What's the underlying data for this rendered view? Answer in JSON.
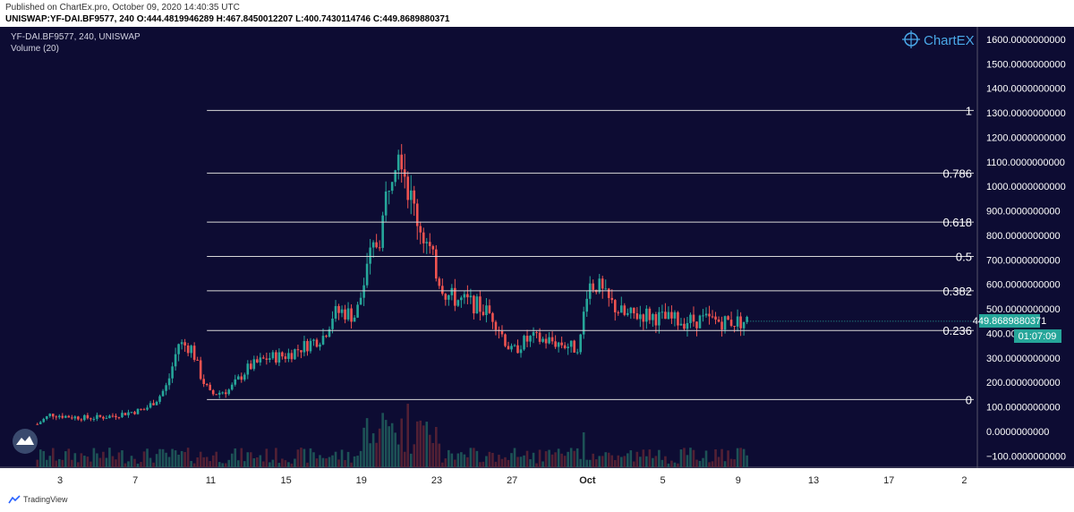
{
  "header": {
    "published": "Published on ChartEx.pro, October 09, 2020 14:40:35 UTC",
    "ohlc": "UNISWAP:YF-DAI.BF9577, 240  O:444.4819946289  H:467.8450012207  L:400.7430114746  C:449.8689880371"
  },
  "legend": {
    "symbol": "YF-DAI.BF9577, 240, UNISWAP",
    "volume": "Volume (20)"
  },
  "logo": {
    "name": "ChartEX"
  },
  "footer": {
    "brand": "TradingView"
  },
  "price_tag": {
    "price": "449.8689880371",
    "countdown": "01:07:09"
  },
  "colors": {
    "background": "#0d0c33",
    "up": "#26a69a",
    "down": "#ef5350",
    "fib": "#d8d8d8",
    "tag": "#26a69a"
  },
  "chart_data": {
    "type": "candlestick",
    "ylim": [
      -150,
      1700
    ],
    "y_ticks": [
      {
        "value": 1600,
        "label": "1600.0000000000"
      },
      {
        "value": 1500,
        "label": "1500.0000000000"
      },
      {
        "value": 1400,
        "label": "1400.0000000000"
      },
      {
        "value": 1300,
        "label": "1300.0000000000"
      },
      {
        "value": 1200,
        "label": "1200.0000000000"
      },
      {
        "value": 1100,
        "label": "1100.0000000000"
      },
      {
        "value": 1000,
        "label": "1000.0000000000"
      },
      {
        "value": 900,
        "label": "900.0000000000"
      },
      {
        "value": 800,
        "label": "800.0000000000"
      },
      {
        "value": 700,
        "label": "700.0000000000"
      },
      {
        "value": 600,
        "label": "600.0000000000"
      },
      {
        "value": 500,
        "label": "500.0000000000"
      },
      {
        "value": 400,
        "label": "400.0000000000"
      },
      {
        "value": 300,
        "label": "300.0000000000"
      },
      {
        "value": 200,
        "label": "200.0000000000"
      },
      {
        "value": 100,
        "label": "100.0000000000"
      },
      {
        "value": 0,
        "label": "0.0000000000"
      },
      {
        "value": -100,
        "label": "−100.0000000000"
      }
    ],
    "x_ticks": [
      {
        "day": 3,
        "label": "3"
      },
      {
        "day": 7,
        "label": "7"
      },
      {
        "day": 11,
        "label": "11"
      },
      {
        "day": 15,
        "label": "15"
      },
      {
        "day": 19,
        "label": "19"
      },
      {
        "day": 23,
        "label": "23"
      },
      {
        "day": 27,
        "label": "27"
      },
      {
        "day": 31,
        "label": "Oct"
      },
      {
        "day": 35,
        "label": "5"
      },
      {
        "day": 39,
        "label": "9"
      },
      {
        "day": 43,
        "label": "13"
      },
      {
        "day": 47,
        "label": "17"
      },
      {
        "day": 51,
        "label": "2"
      }
    ],
    "fib_levels": [
      {
        "label": "1",
        "price": 1310
      },
      {
        "label": "0.786",
        "price": 1054
      },
      {
        "label": "0.618",
        "price": 854
      },
      {
        "label": "0.5",
        "price": 714
      },
      {
        "label": "0.382",
        "price": 574
      },
      {
        "label": "0.236",
        "price": 412
      },
      {
        "label": "0",
        "price": 130
      }
    ],
    "fib_start_day": 10.8,
    "price_path": [
      [
        1.8,
        30
      ],
      [
        2.5,
        70
      ],
      [
        3.5,
        60
      ],
      [
        4.5,
        55
      ],
      [
        5.5,
        60
      ],
      [
        6.5,
        75
      ],
      [
        7.5,
        90
      ],
      [
        8.2,
        135
      ],
      [
        8.7,
        190
      ],
      [
        9.3,
        360
      ],
      [
        10,
        340
      ],
      [
        10.5,
        220
      ],
      [
        11,
        150
      ],
      [
        12,
        170
      ],
      [
        13,
        260
      ],
      [
        14,
        300
      ],
      [
        15,
        310
      ],
      [
        16,
        350
      ],
      [
        17,
        390
      ],
      [
        17.5,
        480
      ],
      [
        18,
        490
      ],
      [
        18.7,
        470
      ],
      [
        19,
        560
      ],
      [
        19.5,
        720
      ],
      [
        20,
        800
      ],
      [
        20.5,
        1050
      ],
      [
        21,
        1200
      ],
      [
        21.5,
        980
      ],
      [
        22,
        860
      ],
      [
        22.5,
        760
      ],
      [
        23,
        650
      ],
      [
        23.5,
        560
      ],
      [
        24,
        540
      ],
      [
        25,
        520
      ],
      [
        26,
        470
      ],
      [
        26.5,
        390
      ],
      [
        27,
        320
      ],
      [
        27.5,
        360
      ],
      [
        28,
        380
      ],
      [
        29,
        370
      ],
      [
        30,
        350
      ],
      [
        30.3,
        340
      ],
      [
        30.6,
        360
      ],
      [
        31,
        600
      ],
      [
        31.5,
        600
      ],
      [
        32,
        540
      ],
      [
        33,
        470
      ],
      [
        34,
        480
      ],
      [
        35,
        460
      ],
      [
        36,
        450
      ],
      [
        37,
        455
      ],
      [
        38,
        450
      ],
      [
        39,
        448
      ],
      [
        39.5,
        449.87
      ]
    ],
    "current_price": 449.8689880371
  }
}
